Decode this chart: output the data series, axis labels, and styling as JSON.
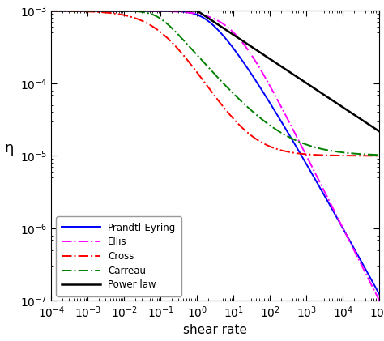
{
  "xlabel": "shear rate",
  "ylabel": "η",
  "xlim_log": [
    -4,
    5
  ],
  "ylim_log": [
    -7,
    -3
  ],
  "background_color": "#ffffff",
  "models": {
    "Power law": {
      "color": "black",
      "linestyle": "solid",
      "lw": 1.8
    },
    "Cross": {
      "color": "red",
      "linestyle": "dashdot",
      "lw": 1.4
    },
    "Carreau": {
      "color": "green",
      "linestyle": "dashdot",
      "lw": 1.4
    },
    "Prandtl-Eyring": {
      "color": "blue",
      "linestyle": "solid",
      "lw": 1.4
    },
    "Ellis": {
      "color": "magenta",
      "linestyle": "dashdot",
      "lw": 1.4
    }
  },
  "eta0": 0.001,
  "eta_inf": 1e-05,
  "n_power": 0.667,
  "lambda_power": 1.0,
  "lambda_cross": 10.0,
  "m_cross": 0.82,
  "lambda_carreau": 12.0,
  "n_carreau": 0.42,
  "lambda_pe": 2000.0,
  "lambda_ellis": 2000.0,
  "alpha_ellis": 3.0
}
